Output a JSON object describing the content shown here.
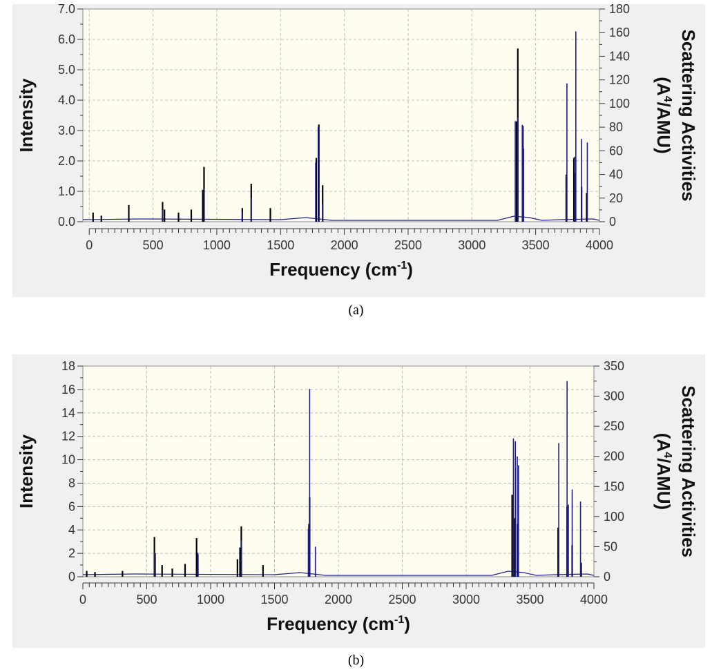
{
  "chart_data": [
    {
      "type": "bar",
      "caption": "(a)",
      "xlabel": "Frequency (cm",
      "xlabel_sup": "-1",
      "xlabel_end": ")",
      "ylabel": "Intensity",
      "y2label": "Scattering Activities",
      "y2label_unit_start": "(A",
      "y2label_unit_sup": "4",
      "y2label_unit_end": "/AMU)",
      "xlim": [
        -50,
        4000
      ],
      "ylim": [
        0,
        7
      ],
      "y2lim": [
        0,
        180
      ],
      "xticks": [
        0,
        500,
        1000,
        1500,
        2000,
        2500,
        3000,
        3500,
        4000
      ],
      "yticks": [
        "0.0",
        "1.0",
        "2.0",
        "3.0",
        "4.0",
        "5.0",
        "6.0",
        "7.0"
      ],
      "y2ticks": [
        0,
        20,
        40,
        60,
        80,
        100,
        120,
        140,
        160,
        180
      ],
      "grid": true,
      "series": [
        {
          "color": "#000000",
          "x": [
            30,
            95,
            310,
            575,
            590,
            700,
            800,
            890,
            900,
            1200,
            1270,
            1420,
            1780,
            1800,
            1830,
            3350,
            3360,
            3400,
            3740,
            3800,
            3810,
            3860,
            3900
          ],
          "values": [
            0.3,
            0.2,
            0.55,
            0.65,
            0.4,
            0.3,
            0.4,
            1.05,
            1.8,
            0.45,
            1.25,
            0.45,
            2.1,
            3.2,
            1.2,
            3.3,
            5.7,
            3.15,
            1.55,
            2.1,
            1.6,
            1.15,
            0.95
          ]
        },
        {
          "color": "#1c1c8c",
          "x": [
            575,
            900,
            1200,
            1270,
            1775,
            1795,
            1830,
            3340,
            3360,
            3395,
            3405,
            3745,
            3805,
            3815,
            3860,
            3905
          ],
          "values": [
            10,
            28,
            8,
            20,
            50,
            80,
            15,
            85,
            88,
            82,
            62,
            117,
            55,
            161,
            70,
            67
          ]
        }
      ]
    },
    {
      "type": "bar",
      "caption": "(b)",
      "xlabel": "Frequency (cm",
      "xlabel_sup": "-1",
      "xlabel_end": ")",
      "ylabel": "Intensity",
      "y2label": "Scattering Activities",
      "y2label_unit_start": "(A",
      "y2label_unit_sup": "4",
      "y2label_unit_end": "/AMU)",
      "xlim": [
        0,
        4000
      ],
      "ylim": [
        0,
        18
      ],
      "y2lim": [
        0,
        350
      ],
      "xticks": [
        0,
        500,
        1000,
        1500,
        2000,
        2500,
        3000,
        3500,
        4000
      ],
      "yticks": [
        "0",
        "2",
        "4",
        "6",
        "8",
        "10",
        "12",
        "14",
        "16",
        "18"
      ],
      "y2ticks": [
        0,
        50,
        100,
        150,
        200,
        250,
        300,
        350
      ],
      "grid": true,
      "series": [
        {
          "color": "#000000",
          "x": [
            30,
            95,
            310,
            560,
            565,
            620,
            700,
            800,
            890,
            900,
            1210,
            1230,
            1240,
            1410,
            1770,
            1775,
            3360,
            3380,
            3400,
            3720,
            3790,
            3830,
            3900
          ],
          "values": [
            0.5,
            0.4,
            0.5,
            3.4,
            2.0,
            1.0,
            0.7,
            1.1,
            3.3,
            1.9,
            1.5,
            2.5,
            4.3,
            1.0,
            4.5,
            6.8,
            7.0,
            5.0,
            4.5,
            4.2,
            6.0,
            2.7,
            1.2
          ]
        },
        {
          "color": "#1c1c8c",
          "x": [
            560,
            900,
            1240,
            1765,
            1775,
            1820,
            3370,
            3385,
            3400,
            3410,
            3725,
            3790,
            3800,
            3830,
            3895
          ],
          "values": [
            40,
            40,
            60,
            80,
            312,
            50,
            230,
            225,
            200,
            185,
            222,
            325,
            120,
            145,
            125
          ]
        }
      ]
    }
  ]
}
